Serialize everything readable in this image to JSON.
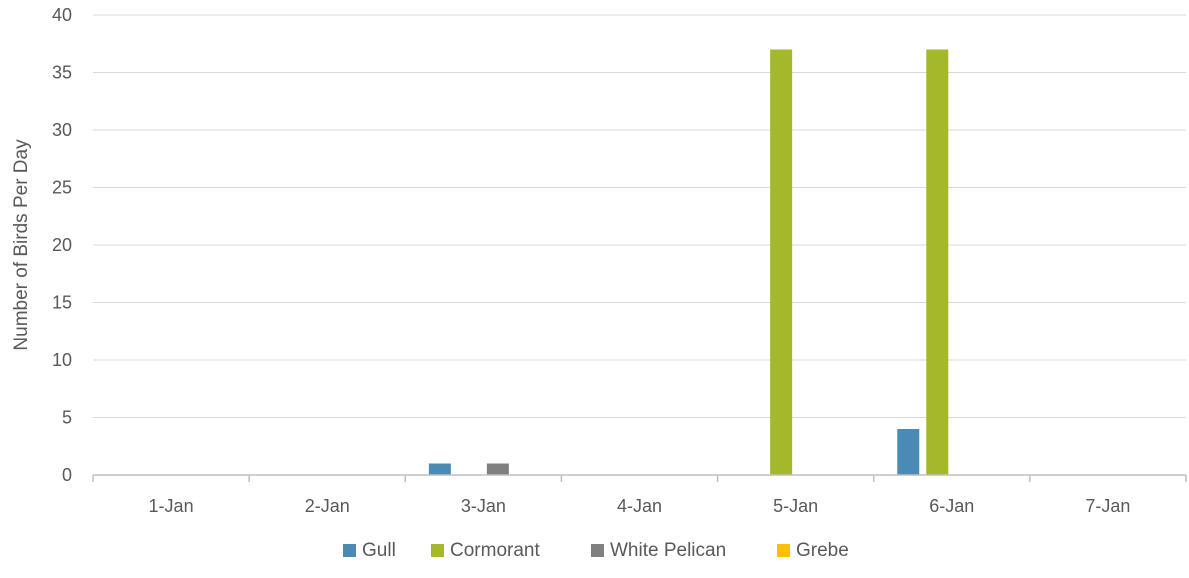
{
  "chart_data": {
    "type": "bar",
    "title": "",
    "xlabel": "",
    "ylabel": "Number of Birds Per Day",
    "ylim": [
      0,
      40
    ],
    "yticks": [
      0,
      5,
      10,
      15,
      20,
      25,
      30,
      35,
      40
    ],
    "grid": true,
    "legend_position": "bottom",
    "categories": [
      "1-Jan",
      "2-Jan",
      "3-Jan",
      "4-Jan",
      "5-Jan",
      "6-Jan",
      "7-Jan"
    ],
    "series": [
      {
        "name": "Gull",
        "color": "#4a8bb5",
        "values": [
          0,
          0,
          1,
          0,
          0,
          4,
          0
        ]
      },
      {
        "name": "Cormorant",
        "color": "#a5b82a",
        "values": [
          0,
          0,
          0,
          0,
          37,
          37,
          0
        ]
      },
      {
        "name": "White Pelican",
        "color": "#808080",
        "values": [
          0,
          0,
          1,
          0,
          0,
          0,
          0
        ]
      },
      {
        "name": "Grebe",
        "color": "#ffc000",
        "values": [
          0,
          0,
          0,
          0,
          0,
          0,
          0
        ]
      }
    ]
  }
}
